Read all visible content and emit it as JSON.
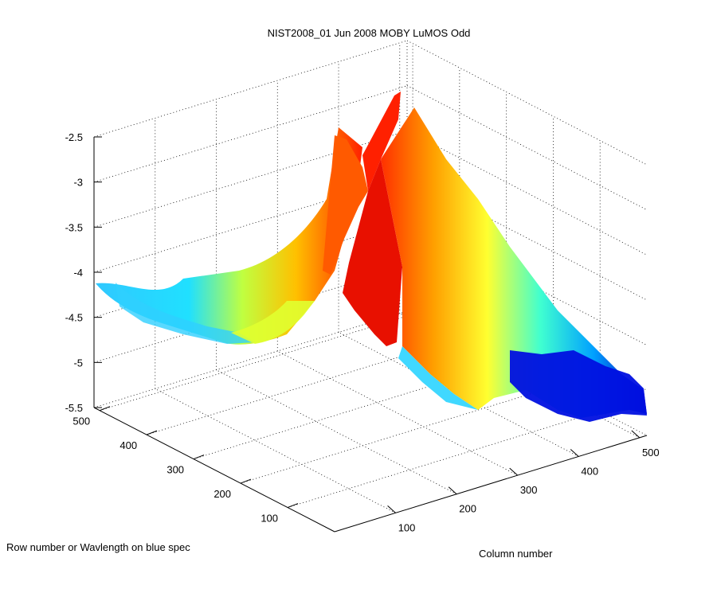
{
  "chart_data": {
    "type": "surface",
    "title": "NIST2008_01 Jun 2008 MOBY LuMOS Odd",
    "xlabel": "Column number",
    "ylabel": "Row number or Wavlength on blue spec",
    "zlabel": "",
    "x_ticks": [
      "100",
      "200",
      "300",
      "400",
      "500"
    ],
    "y_ticks": [
      "100",
      "200",
      "300",
      "400",
      "500"
    ],
    "z_ticks": [
      "-2.5",
      "-3",
      "-3.5",
      "-4",
      "-4.5",
      "-5",
      "-5.5"
    ],
    "xlim": [
      0,
      512
    ],
    "ylim": [
      0,
      512
    ],
    "zlim": [
      -5.5,
      -2.5
    ],
    "colormap": "jet",
    "grid": true,
    "ridge_profile": {
      "column": [
        0,
        50,
        100,
        150,
        200,
        250,
        275,
        300,
        350,
        400,
        450,
        500
      ],
      "z": [
        -4.3,
        -4.5,
        -4.4,
        -4.2,
        -3.8,
        -3.2,
        -2.6,
        -3.2,
        -4.2,
        -4.8,
        -5.1,
        -5.3
      ]
    }
  }
}
